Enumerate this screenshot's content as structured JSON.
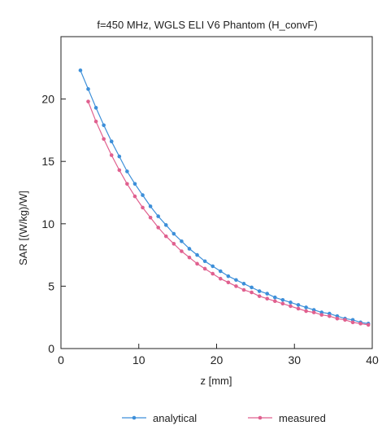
{
  "chart_data": {
    "type": "line",
    "title": "f=450 MHz, WGLS ELI V6 Phantom (H_convF)",
    "xlabel": "z [mm]",
    "ylabel": "SAR [(W/kg)/W]",
    "xlim": [
      0,
      40
    ],
    "ylim": [
      0,
      25
    ],
    "x_ticks": [
      0,
      10,
      20,
      30,
      40
    ],
    "y_ticks": [
      0,
      5,
      10,
      15,
      20
    ],
    "grid": false,
    "legend_position": "bottom",
    "series": [
      {
        "name": "analytical",
        "color": "#3d8fd9",
        "marker": "circle",
        "x": [
          2.5,
          3.5,
          4.5,
          5.5,
          6.5,
          7.5,
          8.5,
          9.5,
          10.5,
          11.5,
          12.5,
          13.5,
          14.5,
          15.5,
          16.5,
          17.5,
          18.5,
          19.5,
          20.5,
          21.5,
          22.5,
          23.5,
          24.5,
          25.5,
          26.5,
          27.5,
          28.5,
          29.5,
          30.5,
          31.5,
          32.5,
          33.5,
          34.5,
          35.5,
          36.5,
          37.5,
          38.5,
          39.5
        ],
        "y": [
          22.3,
          20.8,
          19.3,
          17.9,
          16.6,
          15.4,
          14.2,
          13.2,
          12.3,
          11.4,
          10.6,
          9.9,
          9.2,
          8.6,
          8.0,
          7.5,
          7.0,
          6.6,
          6.2,
          5.8,
          5.5,
          5.2,
          4.9,
          4.6,
          4.4,
          4.1,
          3.9,
          3.7,
          3.5,
          3.3,
          3.1,
          2.9,
          2.8,
          2.6,
          2.4,
          2.3,
          2.1,
          2.0
        ]
      },
      {
        "name": "measured",
        "color": "#e0608f",
        "marker": "circle",
        "x": [
          3.5,
          4.5,
          5.5,
          6.5,
          7.5,
          8.5,
          9.5,
          10.5,
          11.5,
          12.5,
          13.5,
          14.5,
          15.5,
          16.5,
          17.5,
          18.5,
          19.5,
          20.5,
          21.5,
          22.5,
          23.5,
          24.5,
          25.5,
          26.5,
          27.5,
          28.5,
          29.5,
          30.5,
          31.5,
          32.5,
          33.5,
          34.5,
          35.5,
          36.5,
          37.5,
          38.5,
          39.5
        ],
        "y": [
          19.8,
          18.2,
          16.8,
          15.5,
          14.3,
          13.2,
          12.2,
          11.3,
          10.5,
          9.7,
          9.0,
          8.4,
          7.8,
          7.3,
          6.8,
          6.4,
          6.0,
          5.6,
          5.3,
          5.0,
          4.7,
          4.5,
          4.2,
          4.0,
          3.8,
          3.6,
          3.4,
          3.2,
          3.0,
          2.9,
          2.7,
          2.6,
          2.4,
          2.3,
          2.1,
          2.0,
          1.9
        ]
      }
    ]
  }
}
